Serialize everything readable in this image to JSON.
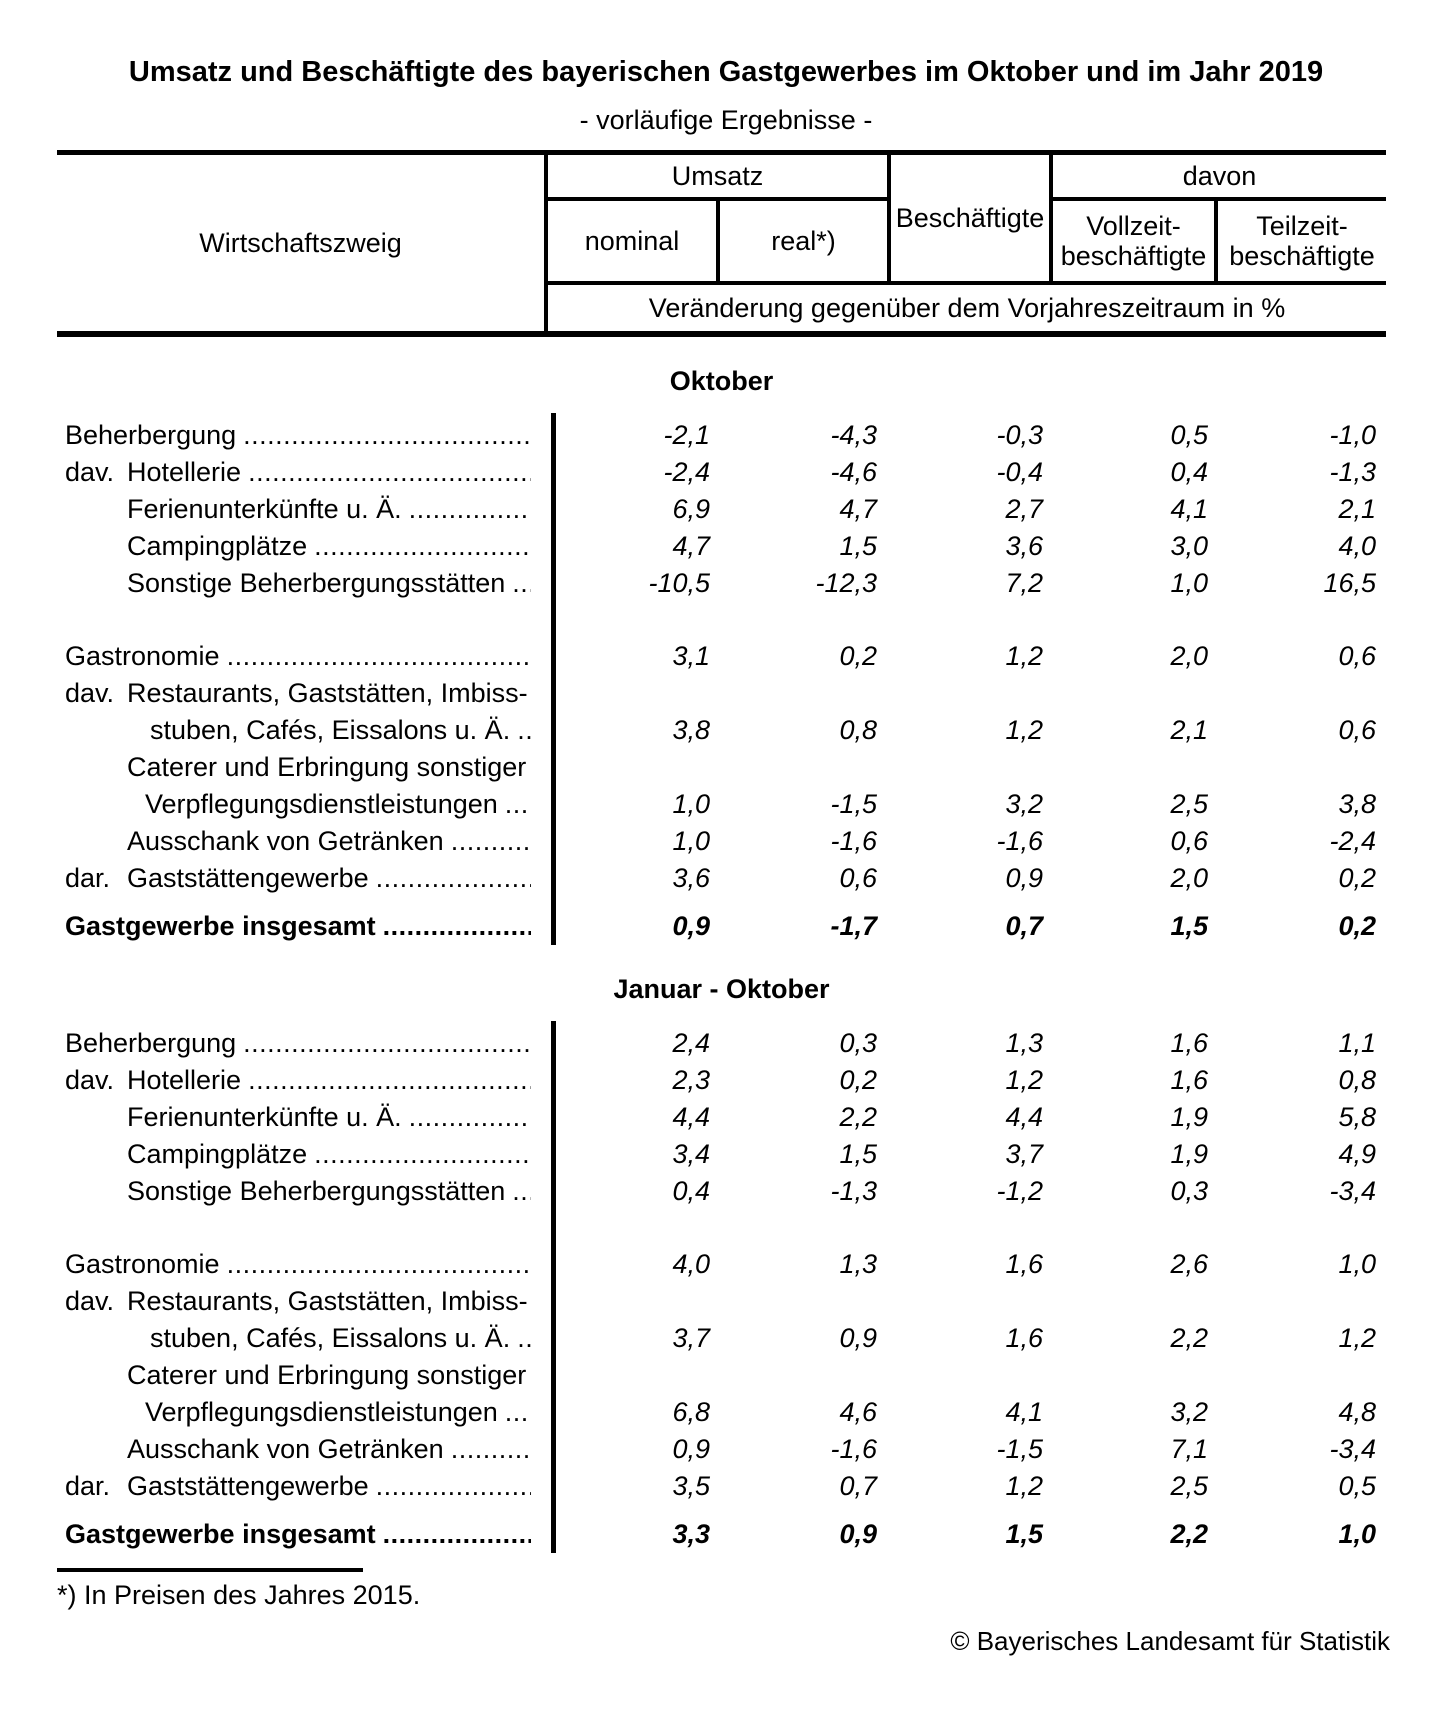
{
  "page": {
    "title": "Umsatz und Beschäftigte des bayerischen Gastgewerbes im Oktober und im Jahr 2019",
    "subtitle": "- vorläufige Ergebnisse -",
    "footnote": "*) In Preisen des Jahres 2015.",
    "copyright": "© Bayerisches Landesamt für Statistik"
  },
  "table": {
    "header": {
      "industry": "Wirtschaftszweig",
      "group_umsatz": "Umsatz",
      "nominal": "nominal",
      "real": "real*)",
      "beschaeftigte": "Beschäftigte",
      "group_davon": "davon",
      "vollzeit": "Vollzeit-\nbeschäftigte",
      "teilzeit": "Teilzeit-\nbeschäftigte",
      "subheader": "Veränderung gegenüber dem Vorjahreszeitraum in %"
    },
    "columns": [
      "nominal",
      "real",
      "beschaeftigte",
      "vollzeit",
      "teilzeit"
    ],
    "sections": [
      {
        "heading": "Oktober",
        "rows": [
          {
            "prefix": "",
            "indent": "top",
            "label": "Beherbergung",
            "dots": ".........................................",
            "values": [
              "-2,1",
              "-4,3",
              "-0,3",
              "0,5",
              "-1,0"
            ]
          },
          {
            "prefix": "dav.",
            "indent": "sub",
            "label": "Hotellerie",
            "dots": "........................................",
            "values": [
              "-2,4",
              "-4,6",
              "-0,4",
              "0,4",
              "-1,3"
            ]
          },
          {
            "prefix": "",
            "indent": "sub",
            "label": "Ferienunterkünfte u. Ä.",
            "dots": "..................",
            "values": [
              "6,9",
              "4,7",
              "2,7",
              "4,1",
              "2,1"
            ]
          },
          {
            "prefix": "",
            "indent": "sub",
            "label": "Campingplätze",
            "dots": "...............................",
            "values": [
              "4,7",
              "1,5",
              "3,6",
              "3,0",
              "4,0"
            ]
          },
          {
            "prefix": "",
            "indent": "sub",
            "label": "Sonstige Beherbergungsstätten",
            "dots": "....",
            "values": [
              "-10,5",
              "-12,3",
              "7,2",
              "1,0",
              "16,5"
            ]
          },
          {
            "spacer": true
          },
          {
            "prefix": "",
            "indent": "top",
            "label": "Gastronomie",
            "dots": "...........................................",
            "values": [
              "3,1",
              "0,2",
              "1,2",
              "2,0",
              "0,6"
            ]
          },
          {
            "prefix": "dav.",
            "indent": "sub",
            "label": "Restaurants, Gaststätten, Imbiss-",
            "dots": "",
            "values": null
          },
          {
            "prefix": "",
            "indent": "cont",
            "label": "stuben, Cafés, Eissalons u. Ä.",
            "dots": "...",
            "values": [
              "3,8",
              "0,8",
              "1,2",
              "2,1",
              "0,6"
            ]
          },
          {
            "prefix": "",
            "indent": "sub",
            "label": "Caterer und Erbringung sonstiger",
            "dots": "",
            "values": null
          },
          {
            "prefix": "",
            "indent": "cont2",
            "label": "Verpflegungsdienstleistungen",
            "dots": "....",
            "values": [
              "1,0",
              "-1,5",
              "3,2",
              "2,5",
              "3,8"
            ]
          },
          {
            "prefix": "",
            "indent": "sub",
            "label": "Ausschank von Getränken",
            "dots": ".............",
            "values": [
              "1,0",
              "-1,6",
              "-1,6",
              "0,6",
              "-2,4"
            ]
          },
          {
            "prefix": "dar.",
            "indent": "sub",
            "label": "Gaststättengewerbe",
            "dots": ".....................",
            "values": [
              "3,6",
              "0,6",
              "0,9",
              "2,0",
              "0,2"
            ]
          },
          {
            "prefix": "",
            "indent": "top",
            "label": "Gastgewerbe insgesamt",
            "dots": "........................",
            "values": [
              "0,9",
              "-1,7",
              "0,7",
              "1,5",
              "0,2"
            ],
            "bold": true
          }
        ]
      },
      {
        "heading": "Januar - Oktober",
        "rows": [
          {
            "prefix": "",
            "indent": "top",
            "label": "Beherbergung",
            "dots": ".........................................",
            "values": [
              "2,4",
              "0,3",
              "1,3",
              "1,6",
              "1,1"
            ]
          },
          {
            "prefix": "dav.",
            "indent": "sub",
            "label": "Hotellerie",
            "dots": "........................................",
            "values": [
              "2,3",
              "0,2",
              "1,2",
              "1,6",
              "0,8"
            ]
          },
          {
            "prefix": "",
            "indent": "sub",
            "label": "Ferienunterkünfte u. Ä.",
            "dots": "..................",
            "values": [
              "4,4",
              "2,2",
              "4,4",
              "1,9",
              "5,8"
            ]
          },
          {
            "prefix": "",
            "indent": "sub",
            "label": "Campingplätze",
            "dots": "...............................",
            "values": [
              "3,4",
              "1,5",
              "3,7",
              "1,9",
              "4,9"
            ]
          },
          {
            "prefix": "",
            "indent": "sub",
            "label": "Sonstige Beherbergungsstätten",
            "dots": "....",
            "values": [
              "0,4",
              "-1,3",
              "-1,2",
              "0,3",
              "-3,4"
            ]
          },
          {
            "spacer": true
          },
          {
            "prefix": "",
            "indent": "top",
            "label": "Gastronomie",
            "dots": "...........................................",
            "values": [
              "4,0",
              "1,3",
              "1,6",
              "2,6",
              "1,0"
            ]
          },
          {
            "prefix": "dav.",
            "indent": "sub",
            "label": "Restaurants, Gaststätten, Imbiss-",
            "dots": "",
            "values": null
          },
          {
            "prefix": "",
            "indent": "cont",
            "label": "stuben, Cafés, Eissalons u. Ä.",
            "dots": "...",
            "values": [
              "3,7",
              "0,9",
              "1,6",
              "2,2",
              "1,2"
            ]
          },
          {
            "prefix": "",
            "indent": "sub",
            "label": "Caterer und Erbringung sonstiger",
            "dots": "",
            "values": null
          },
          {
            "prefix": "",
            "indent": "cont2",
            "label": "Verpflegungsdienstleistungen",
            "dots": "....",
            "values": [
              "6,8",
              "4,6",
              "4,1",
              "3,2",
              "4,8"
            ]
          },
          {
            "prefix": "",
            "indent": "sub",
            "label": "Ausschank von Getränken",
            "dots": ".............",
            "values": [
              "0,9",
              "-1,6",
              "-1,5",
              "7,1",
              "-3,4"
            ]
          },
          {
            "prefix": "dar.",
            "indent": "sub",
            "label": "Gaststättengewerbe",
            "dots": ".....................",
            "values": [
              "3,5",
              "0,7",
              "1,2",
              "2,5",
              "0,5"
            ]
          },
          {
            "prefix": "",
            "indent": "top",
            "label": "Gastgewerbe insgesamt",
            "dots": "........................",
            "values": [
              "3,3",
              "0,9",
              "1,5",
              "2,2",
              "1,0"
            ],
            "bold": true
          }
        ]
      }
    ]
  }
}
